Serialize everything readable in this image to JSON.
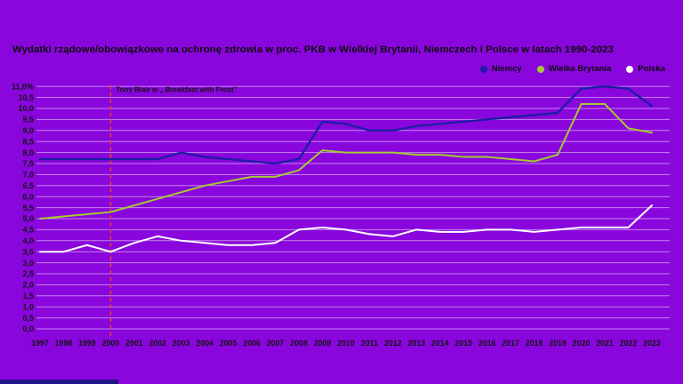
{
  "chart_data": {
    "type": "line",
    "title": "Wydatki rządowe/obowiązkowe na ochronę zdrowia w proc. PKB w Wielkiej Brytanii, Niemczech i Polsce w latach 1990-2023",
    "x_labels": [
      "1997",
      "1998",
      "1999",
      "2000",
      "2001",
      "2002",
      "2003",
      "2004",
      "2005",
      "2006",
      "2007",
      "2008",
      "2009",
      "2010",
      "2011",
      "2012",
      "2013",
      "2014",
      "2015",
      "2016",
      "2017",
      "2018",
      "2019",
      "2020",
      "2021",
      "2022",
      "2023"
    ],
    "series": [
      {
        "name": "Niemcy",
        "color": "#1c1da6",
        "values": [
          7.7,
          7.7,
          7.7,
          7.7,
          7.7,
          7.7,
          8.0,
          7.8,
          7.7,
          7.6,
          7.5,
          7.7,
          9.4,
          9.3,
          9.0,
          9.0,
          9.2,
          9.3,
          9.4,
          9.5,
          9.6,
          9.7,
          9.8,
          10.9,
          11.0,
          10.9,
          10.1
        ]
      },
      {
        "name": "Wielka Brytania",
        "color": "#a4cb32",
        "values": [
          5.0,
          5.1,
          5.2,
          5.3,
          5.6,
          5.9,
          6.2,
          6.5,
          6.7,
          6.9,
          6.9,
          7.2,
          8.1,
          8.0,
          8.0,
          8.0,
          7.9,
          7.9,
          7.8,
          7.8,
          7.7,
          7.6,
          7.9,
          10.2,
          10.2,
          9.1,
          8.9
        ]
      },
      {
        "name": "Polska",
        "color": "#ffffff",
        "values": [
          3.5,
          3.5,
          3.8,
          3.5,
          3.9,
          4.2,
          4.0,
          3.9,
          3.8,
          3.8,
          3.9,
          4.5,
          4.6,
          4.5,
          4.3,
          4.2,
          4.5,
          4.4,
          4.4,
          4.5,
          4.5,
          4.4,
          4.5,
          4.6,
          4.6,
          4.6,
          5.6
        ]
      }
    ],
    "ylim": [
      0,
      11
    ],
    "ytick_step": 0.5,
    "ytick_labels": [
      "0,0",
      "0,5",
      "1,0",
      "1,5",
      "2,0",
      "2,5",
      "3,0",
      "3,5",
      "4,0",
      "4,5",
      "5,0",
      "5,5",
      "6,0",
      "6,5",
      "7,0",
      "7,5",
      "8,0",
      "8,5",
      "9,0",
      "9,5",
      "10,0",
      "10,5",
      "11,0%"
    ],
    "grid": true,
    "legend_position": "top-right",
    "annotation": {
      "text": "Tony Blair w „ Breakfast with Frost”",
      "year": "2000",
      "line_color": "#e8412f"
    },
    "colors": {
      "background": "#8906DC",
      "gridline": "rgba(255,255,255,0.5)",
      "text": "#0c0c0c",
      "bottom_bar": "#201488"
    }
  }
}
